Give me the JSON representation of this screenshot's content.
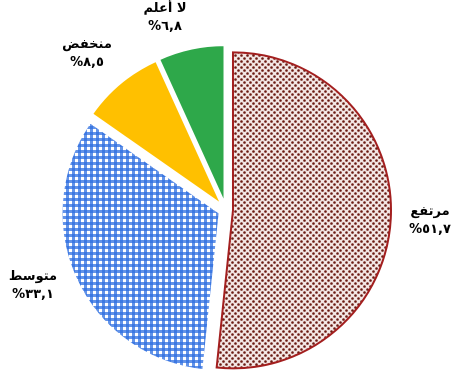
{
  "chart_data": {
    "type": "pie",
    "title": "",
    "slices": [
      {
        "label": "مرتفع",
        "value_text": "٥١,٧%",
        "value": 51.7,
        "color": "#a31f1f",
        "fill": "dots"
      },
      {
        "label": "متوسط",
        "value_text": "٣٣,١%",
        "value": 33.1,
        "color": "#2f6fe0",
        "fill": "checker"
      },
      {
        "label": "منخفض",
        "value_text": "٨,٥%",
        "value": 8.5,
        "color": "#ffc000",
        "fill": "solid"
      },
      {
        "label": "لا أعلم",
        "value_text": "٦,٨%",
        "value": 6.8,
        "color": "#2ea84a",
        "fill": "solid"
      }
    ],
    "legend": "none",
    "labels": "outside",
    "exploded": true
  }
}
